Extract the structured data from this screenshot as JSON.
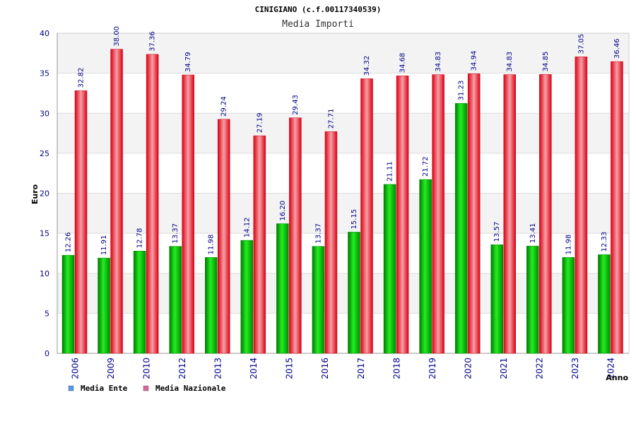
{
  "chart_data": {
    "type": "bar",
    "title": "CINIGIANO (c.f.00117340539)",
    "subtitle": "Media Importi",
    "xlabel": "Anno",
    "ylabel": "Euro",
    "ylim": [
      0,
      40
    ],
    "yticks": [
      0,
      5,
      10,
      15,
      20,
      25,
      30,
      35,
      40
    ],
    "grid": true,
    "legend_position": "bottom-left",
    "categories": [
      "2006",
      "2009",
      "2010",
      "2012",
      "2013",
      "2014",
      "2015",
      "2016",
      "2017",
      "2018",
      "2019",
      "2020",
      "2021",
      "2022",
      "2023",
      "2024"
    ],
    "series": [
      {
        "name": "Media Ente",
        "color": "#00b000",
        "legend_color": "#5599ee",
        "values": [
          12.26,
          11.91,
          12.78,
          13.37,
          11.98,
          14.12,
          16.2,
          13.37,
          15.15,
          21.11,
          21.72,
          31.23,
          13.57,
          13.41,
          11.98,
          12.33
        ],
        "labels": [
          "12.26",
          "11.91",
          "12.78",
          "13.37",
          "11.98",
          "14.12",
          "16.20",
          "13.37",
          "15.15",
          "21.11",
          "21.72",
          "31.23",
          "13.57",
          "13.41",
          "11.98",
          "12.33"
        ]
      },
      {
        "name": "Media Nazionale",
        "color": "#ee1122",
        "legend_color": "#dd6699",
        "values": [
          32.82,
          38.0,
          37.36,
          34.79,
          29.24,
          27.19,
          29.43,
          27.71,
          34.32,
          34.68,
          34.83,
          34.94,
          34.83,
          34.85,
          37.05,
          36.46
        ],
        "labels": [
          "32.82",
          "38.00",
          "37.36",
          "34.79",
          "29.24",
          "27.19",
          "29.43",
          "27.71",
          "34.32",
          "34.68",
          "34.83",
          "34.94",
          "34.83",
          "34.85",
          "37.05",
          "36.46"
        ]
      }
    ]
  }
}
